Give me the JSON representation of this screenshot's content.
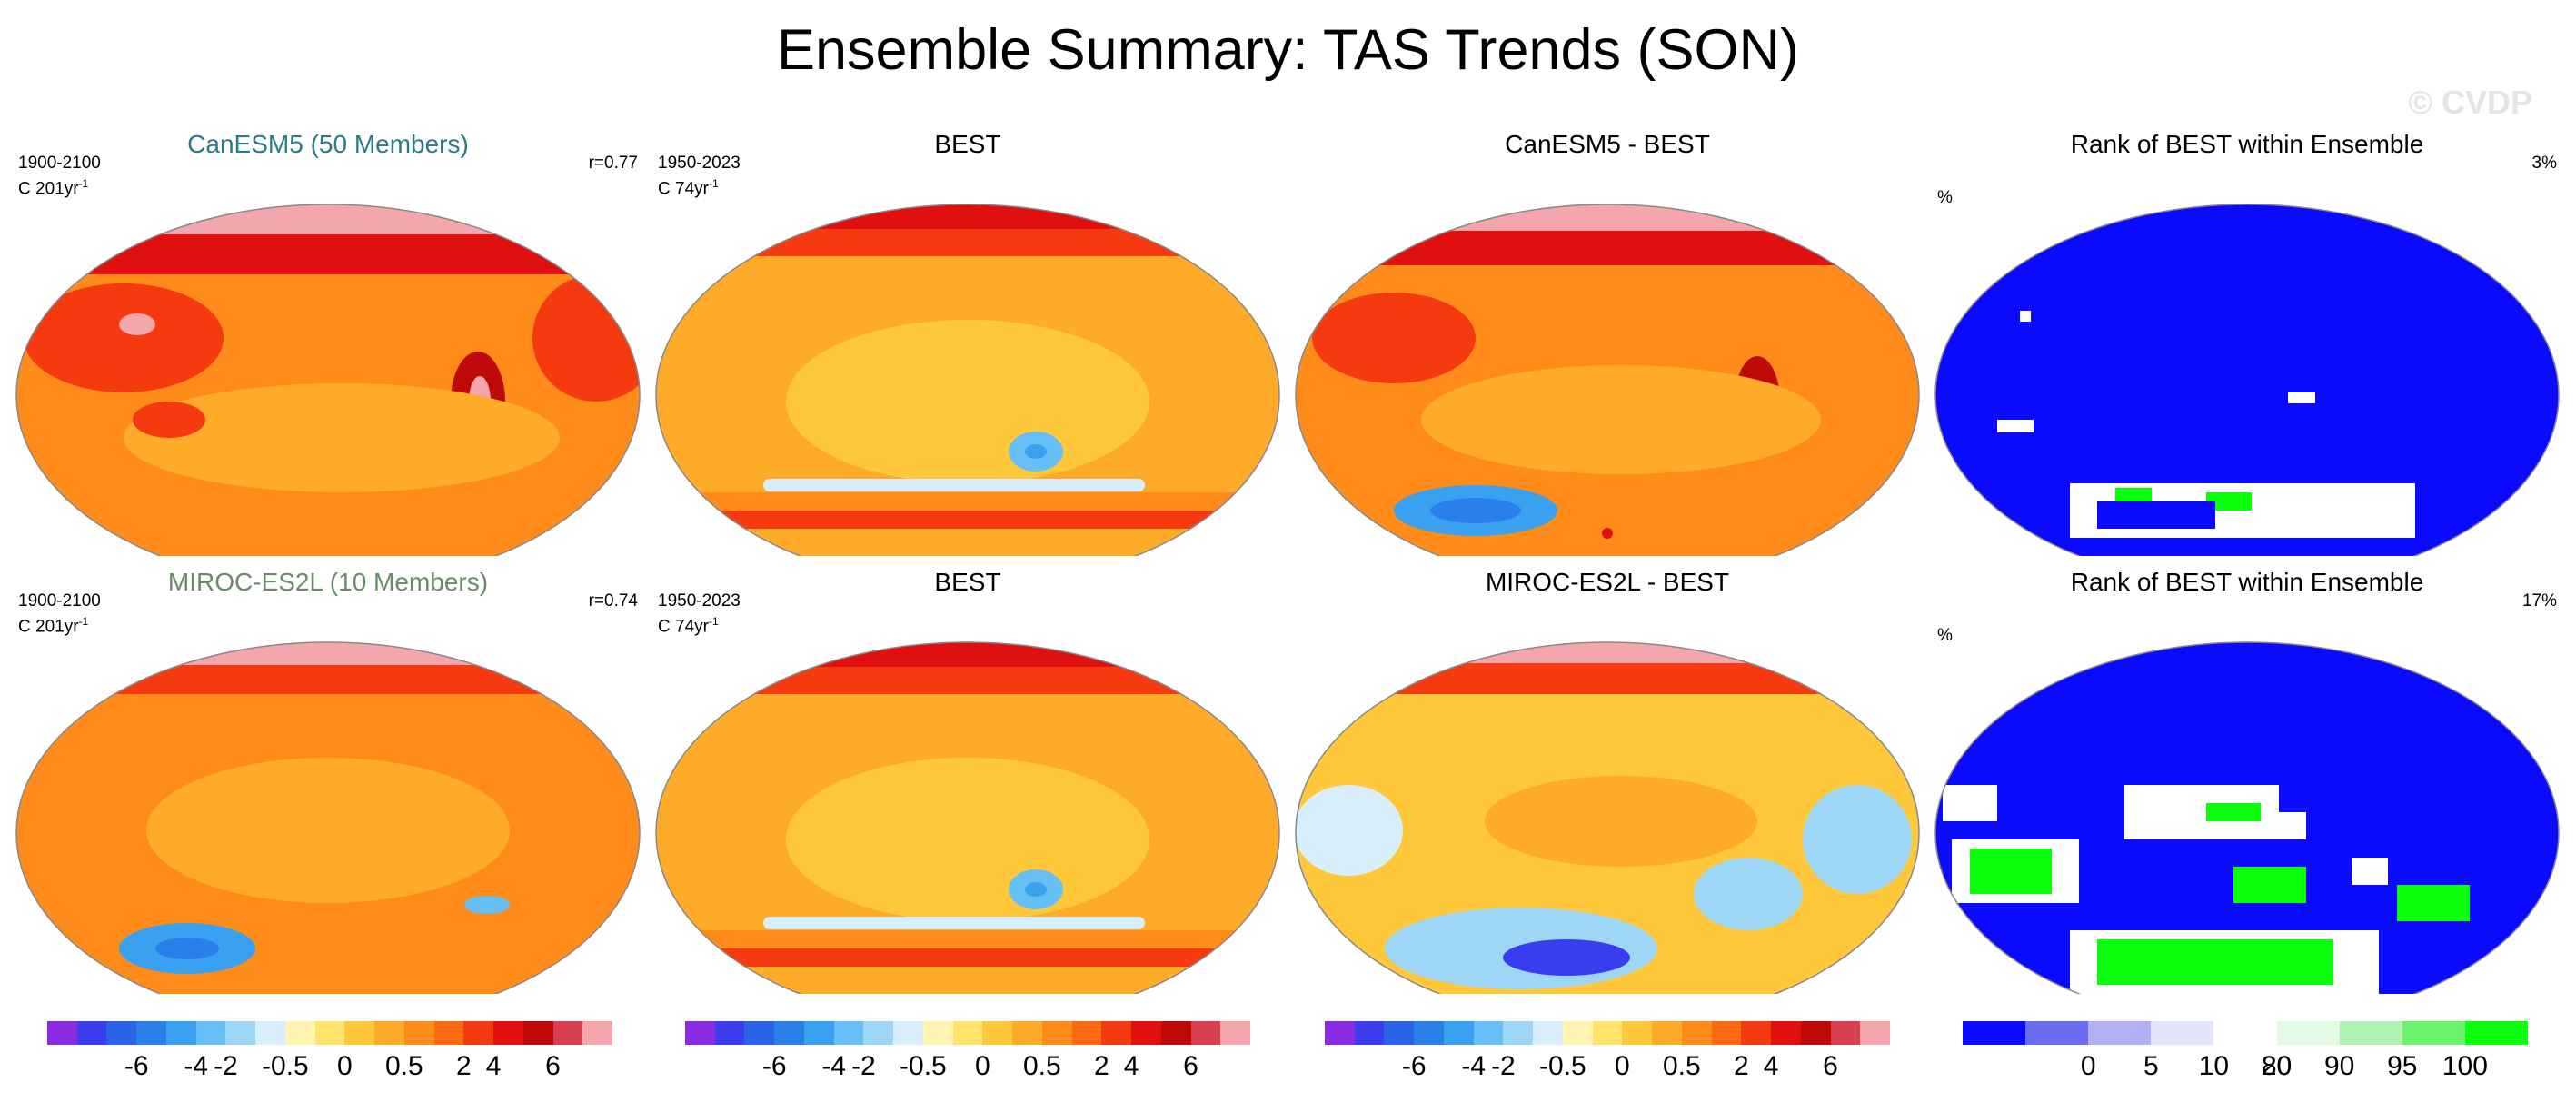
{
  "title": "Ensemble Summary: TAS Trends (SON)",
  "watermark": "© CVDP",
  "row1": {
    "p1": {
      "title": "CanESM5 (50 Members)",
      "period": "1900-2100",
      "units": "C 201yr",
      "unit_exp": "-1",
      "corr": "r=0.77"
    },
    "p2": {
      "title": "BEST",
      "period": "1950-2023",
      "units": "C 74yr",
      "unit_exp": "-1"
    },
    "p3": {
      "title": "CanESM5 - BEST"
    },
    "p4": {
      "title": "Rank of BEST within Ensemble",
      "pct_label": "%",
      "pct_value": "3%"
    }
  },
  "row2": {
    "p1": {
      "title": "MIROC-ES2L (10 Members)",
      "period": "1900-2100",
      "units": "C 201yr",
      "unit_exp": "-1",
      "corr": "r=0.74"
    },
    "p2": {
      "title": "BEST",
      "period": "1950-2023",
      "units": "C 74yr",
      "unit_exp": "-1"
    },
    "p3": {
      "title": "MIROC-ES2L - BEST"
    },
    "p4": {
      "title": "Rank of BEST within Ensemble",
      "pct_label": "%",
      "pct_value": "17%"
    }
  },
  "colorbar_trend": {
    "colors": [
      "#8a2be2",
      "#3b3bf0",
      "#2a62e8",
      "#2a80ea",
      "#3aa0f0",
      "#66c0f5",
      "#9ed6f5",
      "#d8eefa",
      "#fff5b0",
      "#ffe36a",
      "#ffc83a",
      "#ffab2a",
      "#ff8c1a",
      "#ff6a10",
      "#f53a10",
      "#e01010",
      "#c00a0a",
      "#d84050",
      "#f4a6ad"
    ],
    "labels": [
      "-6",
      "-4",
      "-2",
      "-0.5",
      "0",
      "0.5",
      "2",
      "4",
      "6"
    ]
  },
  "colorbar_rank": {
    "colors": [
      "#0a0aff",
      "#6c6cf2",
      "#b0b0f2",
      "#e4e4fa",
      "#ffffff",
      "#e4fae4",
      "#b0f2b0",
      "#6cf26c",
      "#0aff0a"
    ],
    "labels": [
      "0",
      "5",
      "10",
      "20",
      "80",
      "90",
      "95",
      "100"
    ]
  }
}
